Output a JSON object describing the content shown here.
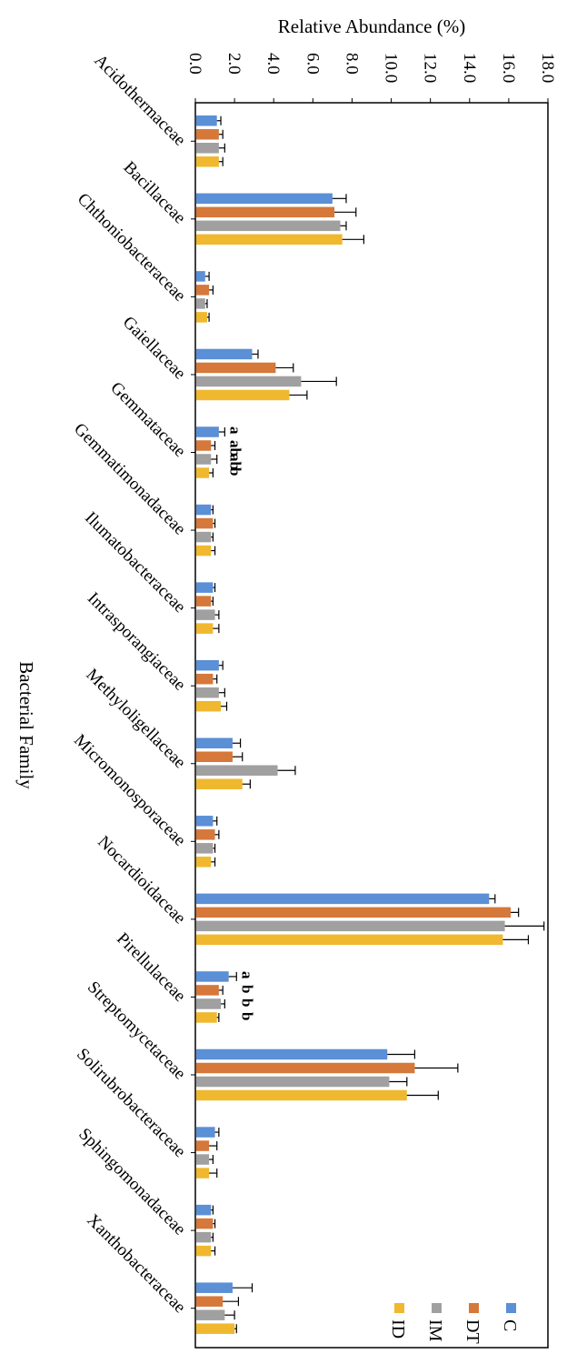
{
  "chart_data": {
    "type": "bar",
    "orientation": "horizontal (figure rotated 90 degrees)",
    "ylabel": "Relative Abundance (%)",
    "xlabel": "Bacterial Family",
    "ylim": [
      0,
      18
    ],
    "yticks": [
      "0.0",
      "2.0",
      "4.0",
      "6.0",
      "8.0",
      "10.0",
      "12.0",
      "14.0",
      "16.0",
      "18.0"
    ],
    "categories": [
      "Acidothermaceae",
      "Bacillaceae",
      "Chthoniobacteraceae",
      "Gaiellaceae",
      "Gemmataceae",
      "Gemmatimonadaceae",
      "Ilumatobacteraceae",
      "Intrasporangiaceae",
      "Methyloligellaceae",
      "Micromonosporaceae",
      "Nocardioidaceae",
      "Pirellulaceae",
      "Streptomycetaceae",
      "Solirubrobacteraceae",
      "Sphingomonadaceae",
      "Xanthobacteraceae"
    ],
    "series": [
      {
        "name": "C",
        "color": "#5b8fd6",
        "values": [
          1.1,
          7.0,
          0.5,
          2.9,
          1.2,
          0.8,
          0.9,
          1.2,
          1.9,
          0.9,
          15.0,
          1.7,
          9.8,
          1.0,
          0.8,
          1.9
        ],
        "errors": [
          0.2,
          0.7,
          0.2,
          0.3,
          0.3,
          0.1,
          0.1,
          0.2,
          0.4,
          0.2,
          0.3,
          0.4,
          1.4,
          0.2,
          0.1,
          1.0
        ]
      },
      {
        "name": "DT",
        "color": "#d5783a",
        "values": [
          1.2,
          7.1,
          0.7,
          4.1,
          0.8,
          0.9,
          0.8,
          0.9,
          1.9,
          1.0,
          16.1,
          1.2,
          11.2,
          0.7,
          0.9,
          1.4
        ],
        "errors": [
          0.2,
          1.1,
          0.2,
          0.9,
          0.2,
          0.1,
          0.1,
          0.2,
          0.5,
          0.2,
          0.4,
          0.2,
          2.2,
          0.4,
          0.1,
          0.8
        ]
      },
      {
        "name": "IM",
        "color": "#a0a0a0",
        "values": [
          1.2,
          7.4,
          0.5,
          5.4,
          0.8,
          0.8,
          1.0,
          1.2,
          4.2,
          0.9,
          15.8,
          1.3,
          9.9,
          0.7,
          0.8,
          1.5
        ],
        "errors": [
          0.3,
          0.3,
          0.1,
          1.8,
          0.3,
          0.1,
          0.2,
          0.3,
          0.9,
          0.1,
          2.0,
          0.2,
          0.9,
          0.2,
          0.1,
          0.5
        ]
      },
      {
        "name": "ID",
        "color": "#f0b82e",
        "values": [
          1.2,
          7.5,
          0.6,
          4.8,
          0.7,
          0.8,
          0.9,
          1.3,
          2.4,
          0.8,
          15.7,
          1.1,
          10.8,
          0.7,
          0.8,
          2.0
        ],
        "errors": [
          0.2,
          1.1,
          0.1,
          0.9,
          0.2,
          0.2,
          0.3,
          0.3,
          0.4,
          0.2,
          1.3,
          0.1,
          1.6,
          0.4,
          0.2,
          0.1
        ]
      }
    ],
    "significance": {
      "Gemmataceae": [
        "a",
        "ab",
        "ab",
        "b"
      ],
      "Pirellulaceae": [
        "a",
        "b",
        "b",
        "b"
      ]
    },
    "legend": [
      "C",
      "DT",
      "IM",
      "ID"
    ],
    "legend_position": "bottom-right"
  }
}
